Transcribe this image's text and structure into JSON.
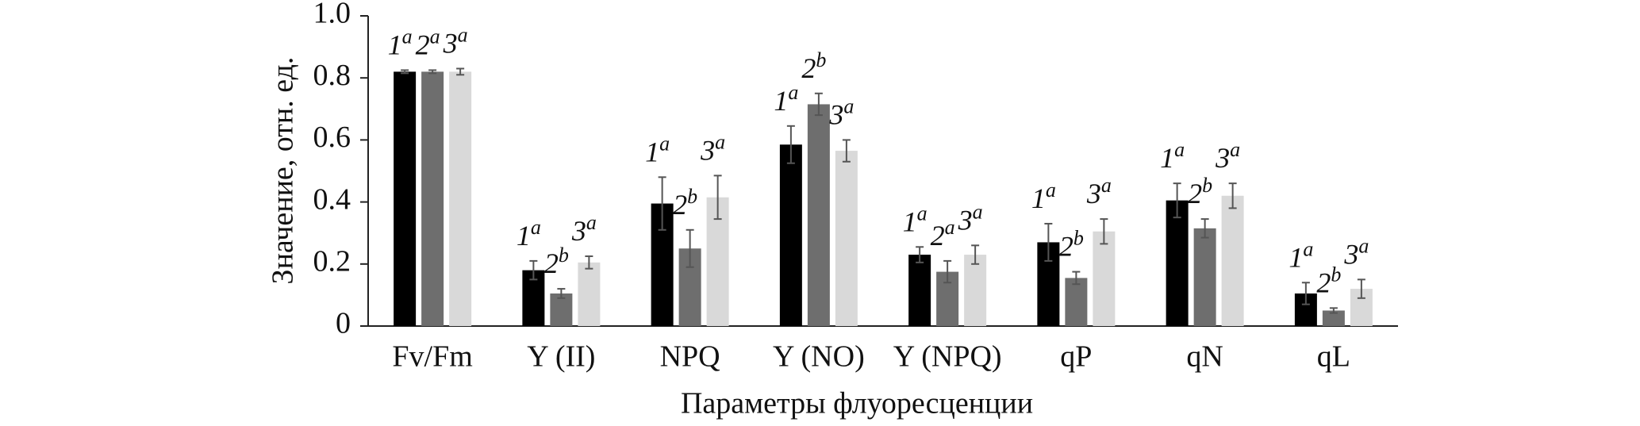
{
  "chart_data": {
    "type": "bar",
    "y_label": "Значение, отн. ед.",
    "x_label": "Параметры флуоресценции",
    "categories": [
      "Fv/Fm",
      "Y (II)",
      "NPQ",
      "Y (NO)",
      "Y (NPQ)",
      "qP",
      "qN",
      "qL"
    ],
    "series": [
      {
        "color": "#000000",
        "label": "1",
        "values": [
          0.82,
          0.18,
          0.395,
          0.585,
          0.23,
          0.27,
          0.405,
          0.105
        ],
        "errors": [
          0.005,
          0.03,
          0.085,
          0.06,
          0.025,
          0.06,
          0.055,
          0.035
        ],
        "letters": [
          "a",
          "a",
          "a",
          "a",
          "a",
          "a",
          "a",
          "a"
        ]
      },
      {
        "color": "#6e6e6e",
        "label": "2",
        "values": [
          0.82,
          0.105,
          0.25,
          0.715,
          0.175,
          0.155,
          0.315,
          0.05
        ],
        "errors": [
          0.005,
          0.015,
          0.06,
          0.035,
          0.035,
          0.02,
          0.03,
          0.008
        ],
        "letters": [
          "a",
          "b",
          "b",
          "b",
          "a",
          "b",
          "b",
          "b"
        ]
      },
      {
        "color": "#d9d9d9",
        "label": "3",
        "values": [
          0.82,
          0.205,
          0.415,
          0.565,
          0.23,
          0.305,
          0.42,
          0.12
        ],
        "errors": [
          0.01,
          0.02,
          0.07,
          0.035,
          0.03,
          0.04,
          0.04,
          0.03
        ],
        "letters": [
          "a",
          "a",
          "a",
          "a",
          "a",
          "a",
          "a",
          "a"
        ]
      }
    ],
    "ylim": [
      0,
      1
    ],
    "yticks": [
      0,
      0.2,
      0.4,
      0.6,
      0.8,
      {
        "value": 1,
        "label": "1.0"
      }
    ]
  }
}
